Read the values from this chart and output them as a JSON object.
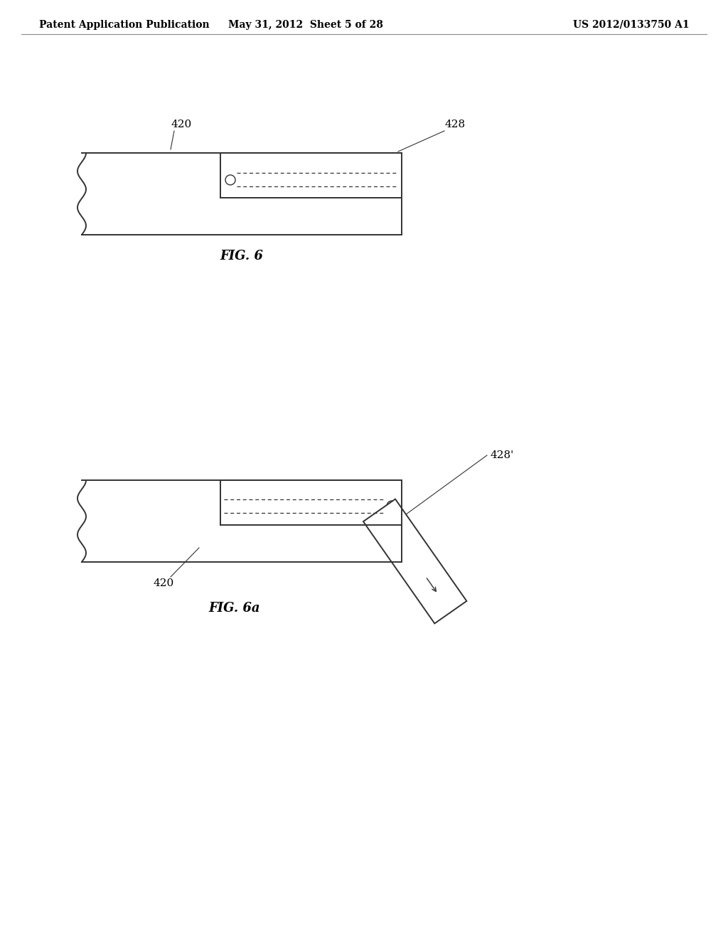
{
  "header_left": "Patent Application Publication",
  "header_center": "May 31, 2012  Sheet 5 of 28",
  "header_right": "US 2012/0133750 A1",
  "fig6_label": "FIG. 6",
  "fig6a_label": "FIG. 6a",
  "label_420_fig6": "420",
  "label_428_fig6": "428",
  "label_420_fig6a": "420",
  "label_428a_fig6a": "428'",
  "bg_color": "#ffffff",
  "line_color": "#333333"
}
